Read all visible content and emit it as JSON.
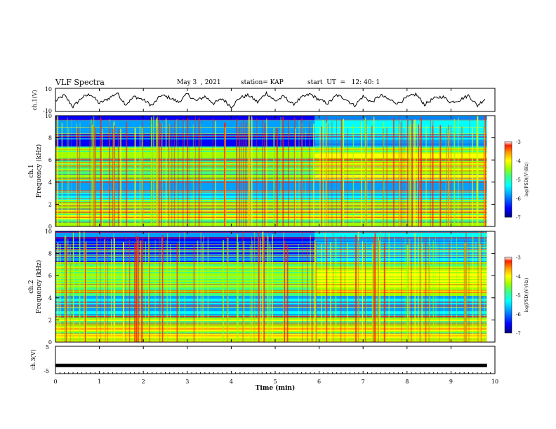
{
  "header": {
    "title": "VLF Spectra",
    "date": "May 3  , 2021",
    "station": "station= KAP",
    "start": "start  UT  =   12: 40: 1"
  },
  "colors": {
    "colormap": [
      "#00007f",
      "#0000ff",
      "#00a0ff",
      "#00ffff",
      "#40ff80",
      "#a0ff00",
      "#ffff00",
      "#ffa000",
      "#ff2000",
      "#ffffff"
    ],
    "trace": "#000000"
  },
  "chart_data": [
    {
      "type": "line",
      "ylabel": "ch.1(V)",
      "ylim": [
        -10,
        10
      ],
      "yticks": [
        "10",
        "-10"
      ],
      "x": [
        0.0,
        0.2,
        0.4,
        0.6,
        0.8,
        1.0,
        1.2,
        1.4,
        1.6,
        1.8,
        2.0,
        2.2,
        2.4,
        2.6,
        2.8,
        3.0,
        3.2,
        3.4,
        3.6,
        3.8,
        4.0,
        4.2,
        4.4,
        4.6,
        4.8,
        5.0,
        5.2,
        5.4,
        5.6,
        5.8,
        6.0,
        6.2,
        6.4,
        6.6,
        6.8,
        7.0,
        7.2,
        7.4,
        7.6,
        7.8,
        8.0,
        8.2,
        8.4,
        8.6,
        8.8,
        9.0,
        9.2,
        9.4,
        9.6,
        9.8
      ],
      "values": [
        -1,
        4,
        -6,
        2,
        5,
        -3,
        1,
        6,
        -4,
        3,
        0,
        -5,
        4,
        2,
        -2,
        5,
        -1,
        3,
        -3,
        1,
        -6,
        2,
        4,
        -2,
        6,
        -1,
        3,
        -4,
        2,
        5,
        0,
        -3,
        4,
        1,
        -5,
        3,
        -2,
        4,
        0,
        -3,
        2,
        5,
        -4,
        1,
        3,
        -2,
        0,
        4,
        -5,
        2
      ]
    },
    {
      "type": "heatmap",
      "channel": "ch.1",
      "ylabel": "Frequency (kHz)",
      "xlim": [
        0,
        10
      ],
      "ylim": [
        0,
        10
      ],
      "yticks": [
        "0",
        "2",
        "4",
        "6",
        "8",
        "10"
      ],
      "colorbar": {
        "label": "log(PSD)(V²/Hz)",
        "range": [
          -7,
          -3
        ],
        "ticks": [
          "-3",
          "-4",
          "-5",
          "-6",
          "-7"
        ]
      },
      "data_end_min": 9.82,
      "band_changes_min": 5.9
    },
    {
      "type": "heatmap",
      "channel": "ch.2",
      "ylabel": "Frequency (kHz)",
      "xlim": [
        0,
        10
      ],
      "ylim": [
        0,
        10
      ],
      "yticks": [
        "0",
        "2",
        "4",
        "6",
        "8",
        "10"
      ],
      "colorbar": {
        "label": "log(PSD)(V²/Hz)",
        "range": [
          -7,
          -3
        ],
        "ticks": [
          "-3",
          "-4",
          "-5",
          "-6",
          "-7"
        ]
      },
      "data_end_min": 9.82,
      "band_changes_min": 5.9
    },
    {
      "type": "line",
      "ylabel": "ch.3(V)",
      "ylim": [
        -5,
        5
      ],
      "yticks": [
        "5",
        "-5"
      ],
      "x": [
        0,
        9.82
      ],
      "values": [
        -2,
        -2
      ]
    }
  ],
  "xaxis": {
    "label": "Time  (min)",
    "ticks": [
      "0",
      "1",
      "2",
      "3",
      "4",
      "5",
      "6",
      "7",
      "8",
      "9",
      "10"
    ]
  }
}
